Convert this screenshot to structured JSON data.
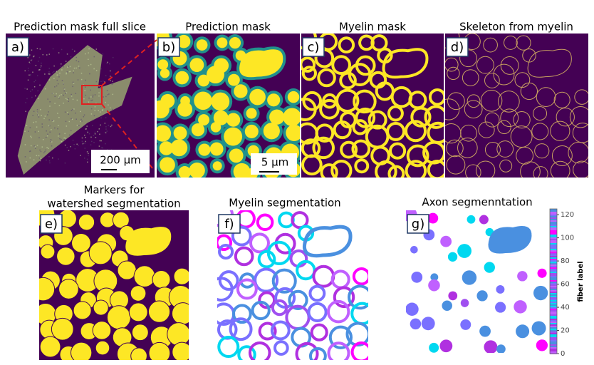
{
  "panels": [
    {
      "letter": "a)",
      "title": "Prediction mask full slice",
      "scale_bar": "200 µm"
    },
    {
      "letter": "b)",
      "title": "Prediction mask",
      "scale_bar": "5 µm"
    },
    {
      "letter": "c)",
      "title": "Myelin mask"
    },
    {
      "letter": "d)",
      "title": "Skeleton from myelin"
    },
    {
      "letter": "e)",
      "title": [
        "Markers for",
        "watershed segmentation"
      ]
    },
    {
      "letter": "f)",
      "title": "Myelin segmentation"
    },
    {
      "letter": "g)",
      "title": "Axon segmenntation"
    }
  ],
  "colorbar": {
    "label": "fiber label",
    "lim": [
      0,
      125
    ],
    "ticks": [
      0,
      20,
      40,
      60,
      80,
      100,
      120
    ]
  }
}
